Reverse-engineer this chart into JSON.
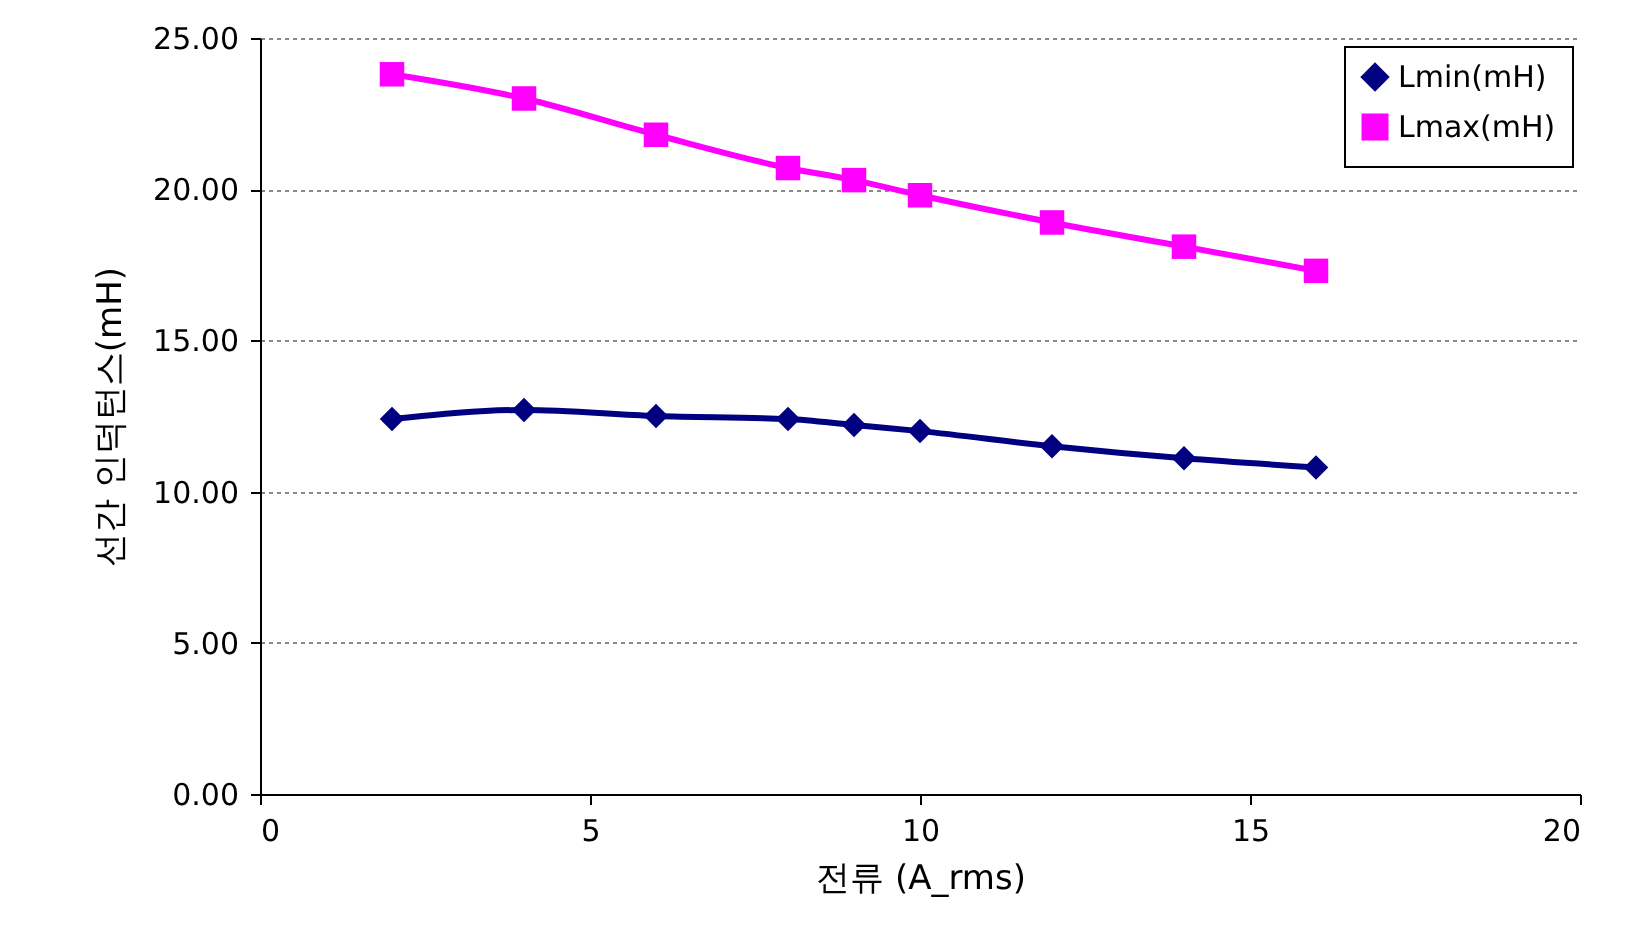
{
  "chart_data": {
    "type": "line",
    "xlabel": "전류 (A_rms)",
    "ylabel": "선간 인덕턴스(mH)",
    "x": [
      2,
      4,
      6,
      8,
      9,
      10,
      12,
      14,
      16
    ],
    "series": [
      {
        "name": "Lmin(mH)",
        "color": "#000080",
        "marker": "diamond",
        "values": [
          12.4,
          12.7,
          12.5,
          12.4,
          12.2,
          12.0,
          11.5,
          11.1,
          10.8
        ]
      },
      {
        "name": "Lmax(mH)",
        "color": "#ff00ff",
        "marker": "square",
        "values": [
          23.8,
          23.0,
          21.8,
          20.7,
          20.3,
          19.8,
          18.9,
          18.1,
          17.3
        ]
      }
    ],
    "xlim": [
      0,
      20
    ],
    "xticks": [
      0,
      5,
      10,
      15,
      20
    ],
    "ylim": [
      0,
      25
    ],
    "yticks": [
      {
        "value": 0,
        "label": "0.00"
      },
      {
        "value": 5,
        "label": "5.00"
      },
      {
        "value": 10,
        "label": "10.00"
      },
      {
        "value": 15,
        "label": "15.00"
      },
      {
        "value": 20,
        "label": "20.00"
      },
      {
        "value": 25,
        "label": "25.00"
      }
    ],
    "grid": "y",
    "legend": "top right",
    "line_style": "solid"
  }
}
